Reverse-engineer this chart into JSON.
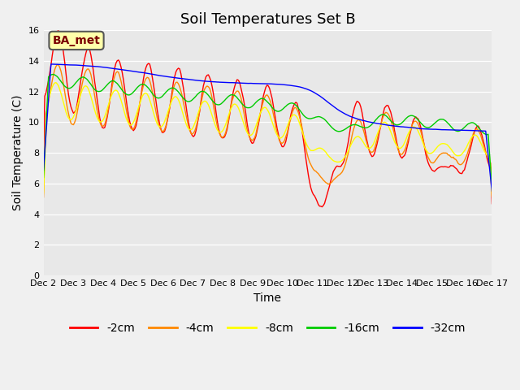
{
  "title": "Soil Temperatures Set B",
  "xlabel": "Time",
  "ylabel": "Soil Temperature (C)",
  "ylim": [
    0,
    16
  ],
  "yticks": [
    0,
    2,
    4,
    6,
    8,
    10,
    12,
    14,
    16
  ],
  "x_labels": [
    "Dec 2",
    "Dec 3",
    "Dec 4",
    "Dec 5",
    "Dec 6",
    "Dec 7",
    "Dec 8",
    "Dec 9",
    "Dec 10",
    "Dec 11",
    "Dec 12",
    "Dec 13",
    "Dec 14",
    "Dec 15",
    "Dec 16",
    "Dec 17"
  ],
  "annotation_text": "BA_met",
  "line_colors": [
    "#ff0000",
    "#ff8800",
    "#ffff00",
    "#00cc00",
    "#0000ff"
  ],
  "legend_labels": [
    "-2cm",
    "-4cm",
    "-8cm",
    "-16cm",
    "-32cm"
  ],
  "bg_color": "#e8e8e8",
  "fig_bg_color": "#f0f0f0",
  "title_fontsize": 13,
  "axis_fontsize": 10,
  "legend_fontsize": 10,
  "n_days": 15,
  "pts_per_day": 24
}
